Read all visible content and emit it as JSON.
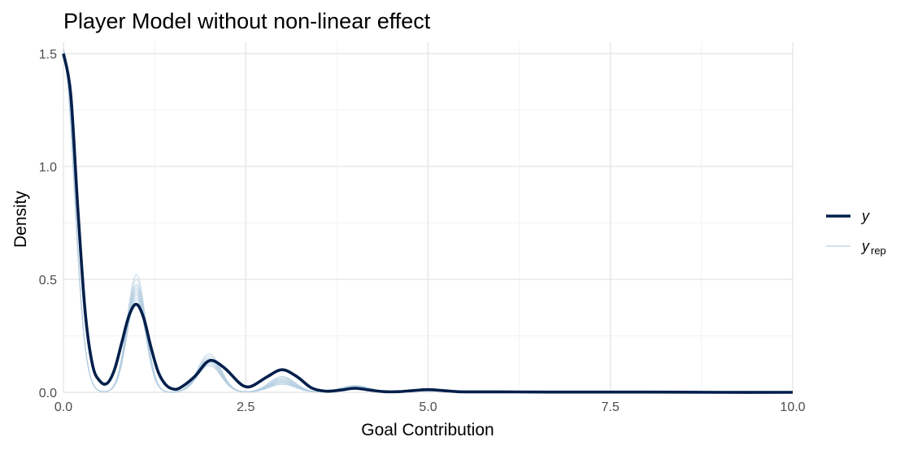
{
  "chart_data": {
    "type": "line",
    "title": "Player Model without non-linear effect",
    "xlabel": "Goal Contribution",
    "ylabel": "Density",
    "xlim": [
      0,
      10
    ],
    "ylim": [
      0,
      1.55
    ],
    "x_ticks": [
      0.0,
      2.5,
      5.0,
      7.5,
      10.0
    ],
    "x_tick_labels": [
      "0.0",
      "2.5",
      "5.0",
      "7.5",
      "10.0"
    ],
    "y_ticks": [
      0.0,
      0.5,
      1.0,
      1.5
    ],
    "y_tick_labels": [
      "0.0",
      "0.5",
      "1.0",
      "1.5"
    ],
    "grid": true,
    "legend_position": "right",
    "legend": [
      {
        "label": "y",
        "sub": "",
        "color": "#011f4b",
        "role": "observed"
      },
      {
        "label": "y",
        "sub": "rep",
        "color": "#b3cde0",
        "role": "replicated"
      }
    ],
    "series": [
      {
        "name": "y",
        "color": "#011f4b",
        "x": [
          0,
          0.1,
          0.2,
          0.3,
          0.4,
          0.5,
          0.6,
          0.7,
          0.8,
          0.9,
          1.0,
          1.1,
          1.2,
          1.3,
          1.4,
          1.5,
          1.6,
          1.8,
          2.0,
          2.2,
          2.4,
          2.5,
          2.6,
          2.8,
          3.0,
          3.2,
          3.4,
          3.6,
          3.8,
          4.0,
          4.2,
          4.4,
          4.6,
          4.8,
          5.0,
          5.2,
          5.4,
          5.6,
          6.0,
          7.0,
          8.0,
          9.0,
          10.0
        ],
        "values": [
          1.5,
          1.32,
          0.8,
          0.35,
          0.12,
          0.05,
          0.04,
          0.1,
          0.22,
          0.34,
          0.39,
          0.33,
          0.2,
          0.09,
          0.035,
          0.015,
          0.02,
          0.07,
          0.14,
          0.11,
          0.045,
          0.025,
          0.03,
          0.07,
          0.1,
          0.07,
          0.02,
          0.005,
          0.01,
          0.018,
          0.01,
          0.003,
          0.003,
          0.008,
          0.012,
          0.008,
          0.003,
          0.002,
          0.002,
          0.001,
          0.001,
          0.0,
          0.0
        ]
      }
    ],
    "replicates": [
      {
        "peak1": 0.52,
        "peak2": 0.12,
        "peak3": 0.055,
        "peak4": 0.03
      },
      {
        "peak1": 0.5,
        "peak2": 0.13,
        "peak3": 0.05,
        "peak4": 0.025
      },
      {
        "peak1": 0.48,
        "peak2": 0.14,
        "peak3": 0.06,
        "peak4": 0.022
      },
      {
        "peak1": 0.47,
        "peak2": 0.15,
        "peak3": 0.045,
        "peak4": 0.028
      },
      {
        "peak1": 0.45,
        "peak2": 0.16,
        "peak3": 0.04,
        "peak4": 0.02
      },
      {
        "peak1": 0.44,
        "peak2": 0.12,
        "peak3": 0.065,
        "peak4": 0.018
      },
      {
        "peak1": 0.43,
        "peak2": 0.17,
        "peak3": 0.05,
        "peak4": 0.024
      },
      {
        "peak1": 0.42,
        "peak2": 0.15,
        "peak3": 0.035,
        "peak4": 0.03
      },
      {
        "peak1": 0.41,
        "peak2": 0.14,
        "peak3": 0.07,
        "peak4": 0.02
      },
      {
        "peak1": 0.46,
        "peak2": 0.13,
        "peak3": 0.04,
        "peak4": 0.026
      }
    ]
  }
}
